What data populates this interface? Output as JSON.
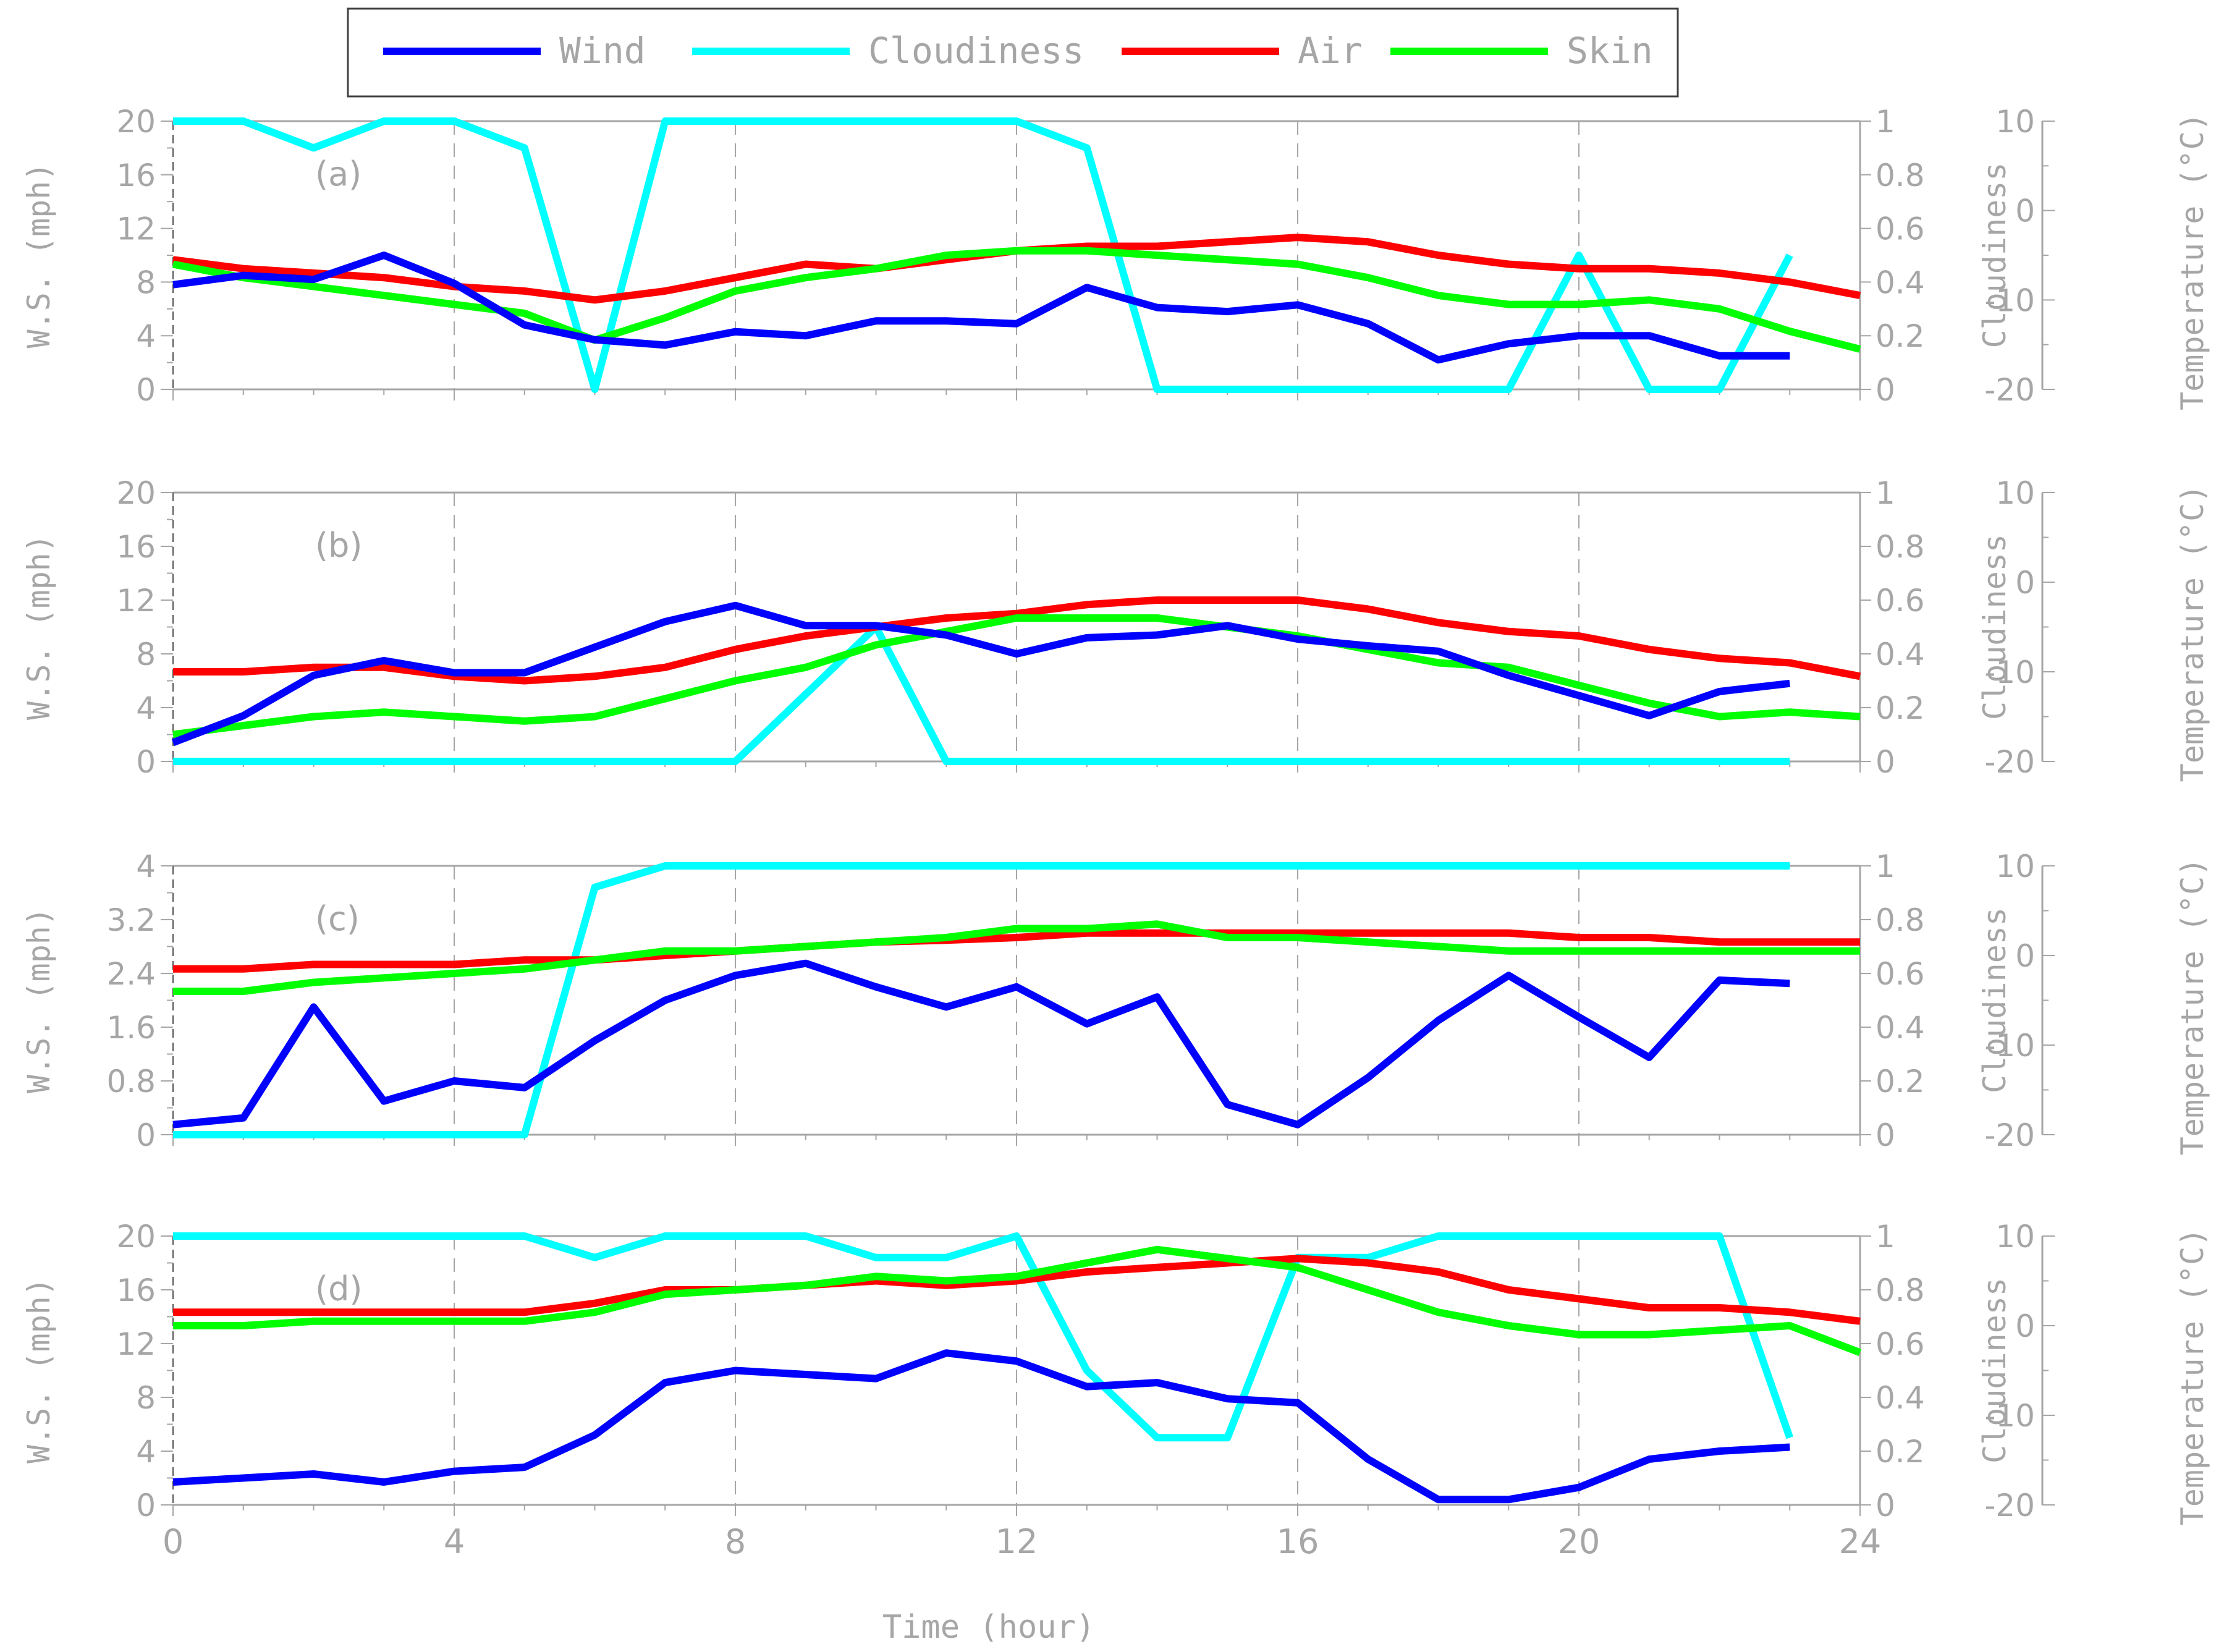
{
  "legend": {
    "entries": [
      {
        "label": "Wind",
        "color": "#0000ff"
      },
      {
        "label": "Cloudiness",
        "color": "#00ffff"
      },
      {
        "label": "Air",
        "color": "#ff0000"
      },
      {
        "label": "Skin",
        "color": "#00ff00"
      }
    ]
  },
  "chart_data": [
    {
      "type": "line",
      "panel_label": "(a)",
      "ylabel": "W.S. (mph)",
      "y2label": "Cloudiness",
      "y3label": "Temperature (°C)",
      "xlim": [
        0,
        24
      ],
      "ylim": [
        0,
        20
      ],
      "yticks": [
        "0",
        "4",
        "8",
        "12",
        "16",
        "20"
      ],
      "y2lim": [
        0,
        1
      ],
      "y2ticks": [
        "0",
        "0.2",
        "0.4",
        "0.6",
        "0.8",
        "1"
      ],
      "y3lim": [
        -20,
        10
      ],
      "y3ticks": [
        "-20",
        "-10",
        "0",
        "10"
      ],
      "series": [
        {
          "name": "Wind",
          "axis": "ws",
          "x": [
            0,
            1,
            2,
            3,
            4,
            5,
            6,
            7,
            8,
            9,
            10,
            11,
            12,
            13,
            14,
            15,
            16,
            17,
            18,
            19,
            20,
            21,
            22,
            23
          ],
          "values": [
            7.8,
            8.5,
            8.2,
            10.0,
            7.9,
            4.8,
            3.7,
            3.3,
            4.3,
            4.0,
            5.1,
            5.1,
            4.9,
            7.6,
            6.1,
            5.8,
            6.3,
            4.9,
            2.2,
            3.4,
            4.0,
            4.0,
            2.5,
            2.5
          ]
        },
        {
          "name": "Cloudiness",
          "axis": "cloud",
          "x": [
            0,
            1,
            2,
            3,
            4,
            5,
            6,
            7,
            8,
            9,
            10,
            11,
            12,
            13,
            14,
            15,
            16,
            17,
            18,
            19,
            20,
            21,
            22,
            23
          ],
          "values": [
            1,
            1,
            0.9,
            1,
            1,
            0.9,
            0,
            1,
            1,
            1,
            1,
            1,
            1,
            0.9,
            0,
            0,
            0,
            0,
            0,
            0,
            0.5,
            0,
            0,
            0.5
          ]
        },
        {
          "name": "Air",
          "axis": "temp",
          "x": [
            0,
            1,
            2,
            3,
            4,
            5,
            6,
            7,
            8,
            9,
            10,
            11,
            12,
            13,
            14,
            15,
            16,
            17,
            18,
            19,
            20,
            21,
            22,
            23,
            24
          ],
          "values": [
            -5.5,
            -6.5,
            -7,
            -7.5,
            -8.5,
            -9,
            -10,
            -9,
            -7.5,
            -6,
            -6.5,
            -5.5,
            -4.5,
            -4,
            -4,
            -3.5,
            -3,
            -3.5,
            -5,
            -6,
            -6.5,
            -6.5,
            -7,
            -8,
            -9.5
          ]
        },
        {
          "name": "Skin",
          "axis": "temp",
          "x": [
            0,
            1,
            2,
            3,
            4,
            5,
            6,
            7,
            8,
            9,
            10,
            11,
            12,
            13,
            14,
            15,
            16,
            17,
            18,
            19,
            20,
            21,
            22,
            23,
            24
          ],
          "values": [
            -6,
            -7.5,
            -8.5,
            -9.5,
            -10.5,
            -11.5,
            -14.5,
            -12,
            -9,
            -7.5,
            -6.5,
            -5,
            -4.5,
            -4.5,
            -5,
            -5.5,
            -6,
            -7.5,
            -9.5,
            -10.5,
            -10.5,
            -10,
            -11,
            -13.5,
            -15.5
          ]
        }
      ]
    },
    {
      "type": "line",
      "panel_label": "(b)",
      "ylabel": "W.S. (mph)",
      "y2label": "Cloudiness",
      "y3label": "Temperature (°C)",
      "xlim": [
        0,
        24
      ],
      "ylim": [
        0,
        20
      ],
      "yticks": [
        "0",
        "4",
        "8",
        "12",
        "16",
        "20"
      ],
      "y2lim": [
        0,
        1
      ],
      "y2ticks": [
        "0",
        "0.2",
        "0.4",
        "0.6",
        "0.8",
        "1"
      ],
      "y3lim": [
        -20,
        10
      ],
      "y3ticks": [
        "-20",
        "-10",
        "0",
        "10"
      ],
      "series": [
        {
          "name": "Wind",
          "axis": "ws",
          "x": [
            0,
            1,
            2,
            3,
            4,
            5,
            6,
            7,
            8,
            9,
            10,
            11,
            12,
            13,
            14,
            15,
            16,
            17,
            18,
            19,
            20,
            21,
            22,
            23
          ],
          "values": [
            1.4,
            3.4,
            6.4,
            7.5,
            6.6,
            6.6,
            8.5,
            10.4,
            11.6,
            10.1,
            10.1,
            9.4,
            8.0,
            9.2,
            9.4,
            10.1,
            9.1,
            8.6,
            8.2,
            6.4,
            4.9,
            3.4,
            5.2,
            5.8
          ]
        },
        {
          "name": "Cloudiness",
          "axis": "cloud",
          "x": [
            0,
            1,
            2,
            3,
            4,
            5,
            6,
            7,
            8,
            9,
            10,
            11,
            12,
            13,
            14,
            15,
            16,
            17,
            18,
            19,
            20,
            21,
            22,
            23
          ],
          "values": [
            0,
            0,
            0,
            0,
            0,
            0,
            0,
            0,
            0,
            0.25,
            0.5,
            0,
            0,
            0,
            0,
            0,
            0,
            0,
            0,
            0,
            0,
            0,
            0,
            0
          ]
        },
        {
          "name": "Air",
          "axis": "temp",
          "x": [
            0,
            1,
            2,
            3,
            4,
            5,
            6,
            7,
            8,
            9,
            10,
            11,
            12,
            13,
            14,
            15,
            16,
            17,
            18,
            19,
            20,
            21,
            22,
            23,
            24
          ],
          "values": [
            -10,
            -10,
            -9.5,
            -9.5,
            -10.5,
            -11,
            -10.5,
            -9.5,
            -7.5,
            -6,
            -5,
            -4,
            -3.5,
            -2.5,
            -2,
            -2,
            -2,
            -3,
            -4.5,
            -5.5,
            -6,
            -7.5,
            -8.5,
            -9,
            -10.5
          ]
        },
        {
          "name": "Skin",
          "axis": "temp",
          "x": [
            0,
            1,
            2,
            3,
            4,
            5,
            6,
            7,
            8,
            9,
            10,
            11,
            12,
            13,
            14,
            15,
            16,
            17,
            18,
            19,
            20,
            21,
            22,
            23,
            24
          ],
          "values": [
            -17,
            -16,
            -15,
            -14.5,
            -15,
            -15.5,
            -15,
            -13,
            -11,
            -9.5,
            -7,
            -5.5,
            -4,
            -4,
            -4,
            -5,
            -6,
            -7.5,
            -9,
            -9.5,
            -11.5,
            -13.5,
            -15,
            -14.5,
            -15
          ]
        }
      ]
    },
    {
      "type": "line",
      "panel_label": "(c)",
      "ylabel": "W.S. (mph)",
      "y2label": "Cloudiness",
      "y3label": "Temperature (°C)",
      "xlim": [
        0,
        24
      ],
      "ylim": [
        0,
        4
      ],
      "yticks": [
        "0",
        "0.8",
        "1.6",
        "2.4",
        "3.2",
        "4"
      ],
      "y2lim": [
        0,
        1
      ],
      "y2ticks": [
        "0",
        "0.2",
        "0.4",
        "0.6",
        "0.8",
        "1"
      ],
      "y3lim": [
        -20,
        10
      ],
      "y3ticks": [
        "-20",
        "-10",
        "0",
        "10"
      ],
      "series": [
        {
          "name": "Wind",
          "axis": "ws",
          "x": [
            0,
            1,
            2,
            3,
            4,
            5,
            6,
            7,
            8,
            9,
            10,
            11,
            12,
            13,
            14,
            15,
            16,
            17,
            18,
            19,
            20,
            21,
            22,
            23
          ],
          "values": [
            0.15,
            0.25,
            1.9,
            0.5,
            0.8,
            0.7,
            1.4,
            2.0,
            2.37,
            2.55,
            2.2,
            1.9,
            2.2,
            1.65,
            2.05,
            0.45,
            0.15,
            0.85,
            1.7,
            2.37,
            1.75,
            1.15,
            2.3,
            2.25
          ]
        },
        {
          "name": "Cloudiness",
          "axis": "cloud",
          "x": [
            0,
            1,
            2,
            3,
            4,
            5,
            6,
            7,
            8,
            9,
            10,
            11,
            12,
            13,
            14,
            15,
            16,
            17,
            18,
            19,
            20,
            21,
            22,
            23
          ],
          "values": [
            0,
            0,
            0,
            0,
            0,
            0,
            0.92,
            1,
            1,
            1,
            1,
            1,
            1,
            1,
            1,
            1,
            1,
            1,
            1,
            1,
            1,
            1,
            1,
            1
          ]
        },
        {
          "name": "Air",
          "axis": "temp",
          "x": [
            0,
            1,
            2,
            3,
            4,
            5,
            6,
            7,
            8,
            9,
            10,
            11,
            12,
            13,
            14,
            15,
            16,
            17,
            18,
            19,
            20,
            21,
            22,
            23,
            24
          ],
          "values": [
            -1.5,
            -1.5,
            -1,
            -1,
            -1,
            -0.5,
            -0.5,
            0,
            0.5,
            1,
            1.5,
            1.7,
            2,
            2.5,
            2.5,
            2.5,
            2.5,
            2.5,
            2.5,
            2.5,
            2,
            2,
            1.5,
            1.5,
            1.5
          ]
        },
        {
          "name": "Skin",
          "axis": "temp",
          "x": [
            0,
            1,
            2,
            3,
            4,
            5,
            6,
            7,
            8,
            9,
            10,
            11,
            12,
            13,
            14,
            15,
            16,
            17,
            18,
            19,
            20,
            21,
            22,
            23,
            24
          ],
          "values": [
            -4,
            -4,
            -3,
            -2.5,
            -2,
            -1.5,
            -0.5,
            0.5,
            0.5,
            1,
            1.5,
            2,
            3,
            3,
            3.5,
            2,
            2,
            1.5,
            1,
            0.5,
            0.5,
            0.5,
            0.5,
            0.5,
            0.5
          ]
        }
      ]
    },
    {
      "type": "line",
      "panel_label": "(d)",
      "ylabel": "W.S. (mph)",
      "y2label": "Cloudiness",
      "y3label": "Temperature (°C)",
      "xlim": [
        0,
        24
      ],
      "ylim": [
        0,
        20
      ],
      "yticks": [
        "0",
        "4",
        "8",
        "12",
        "16",
        "20"
      ],
      "y2lim": [
        0,
        1
      ],
      "y2ticks": [
        "0",
        "0.2",
        "0.4",
        "0.6",
        "0.8",
        "1"
      ],
      "y3lim": [
        -20,
        10
      ],
      "y3ticks": [
        "-20",
        "-10",
        "0",
        "10"
      ],
      "xlabel": "Time (hour)",
      "xticks": [
        "0",
        "4",
        "8",
        "12",
        "16",
        "20",
        "24"
      ],
      "series": [
        {
          "name": "Wind",
          "axis": "ws",
          "x": [
            0,
            1,
            2,
            3,
            4,
            5,
            6,
            7,
            8,
            9,
            10,
            11,
            12,
            13,
            14,
            15,
            16,
            17,
            18,
            19,
            20,
            21,
            22,
            23
          ],
          "values": [
            1.7,
            2.0,
            2.3,
            1.7,
            2.5,
            2.8,
            5.2,
            9.1,
            10.0,
            9.7,
            9.4,
            11.3,
            10.7,
            8.8,
            9.1,
            7.9,
            7.6,
            3.4,
            0.4,
            0.4,
            1.3,
            3.4,
            4.0,
            4.3
          ]
        },
        {
          "name": "Cloudiness",
          "axis": "cloud",
          "x": [
            0,
            1,
            2,
            3,
            4,
            5,
            6,
            7,
            8,
            9,
            10,
            11,
            12,
            13,
            14,
            15,
            16,
            17,
            18,
            19,
            20,
            21,
            22,
            23
          ],
          "values": [
            1,
            1,
            1,
            1,
            1,
            1,
            0.92,
            1,
            1,
            1,
            0.92,
            0.92,
            1,
            0.5,
            0.25,
            0.25,
            0.92,
            0.92,
            1,
            1,
            1,
            1,
            1,
            0.25
          ]
        },
        {
          "name": "Air",
          "axis": "temp",
          "x": [
            0,
            1,
            2,
            3,
            4,
            5,
            6,
            7,
            8,
            9,
            10,
            11,
            12,
            13,
            14,
            15,
            16,
            17,
            18,
            19,
            20,
            21,
            22,
            23,
            24
          ],
          "values": [
            1.5,
            1.5,
            1.5,
            1.5,
            1.5,
            1.5,
            2.5,
            4,
            4,
            4.5,
            5,
            4.5,
            5,
            6,
            6.5,
            7,
            7.5,
            7,
            6,
            4,
            3,
            2,
            2,
            1.5,
            0.5
          ]
        },
        {
          "name": "Skin",
          "axis": "temp",
          "x": [
            0,
            1,
            2,
            3,
            4,
            5,
            6,
            7,
            8,
            9,
            10,
            11,
            12,
            13,
            14,
            15,
            16,
            17,
            18,
            19,
            20,
            21,
            22,
            23,
            24
          ],
          "values": [
            0,
            0,
            0.5,
            0.5,
            0.5,
            0.5,
            1.5,
            3.5,
            4,
            4.5,
            5.5,
            5,
            5.5,
            7,
            8.5,
            7.5,
            6.5,
            4,
            1.5,
            0,
            -1,
            -1,
            -0.5,
            0,
            -3
          ]
        }
      ]
    }
  ]
}
